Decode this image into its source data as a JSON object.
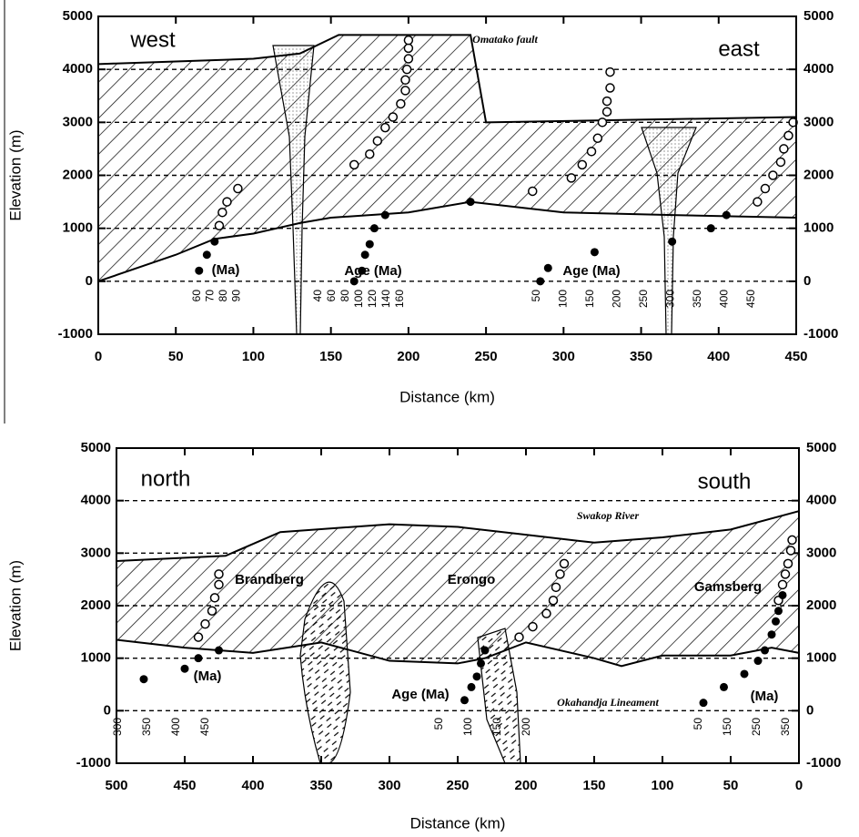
{
  "chart_data": [
    {
      "type": "section",
      "x_label": "Distance (km)",
      "y_label": "Elevation (m)",
      "xlim": [
        0,
        450
      ],
      "ylim": [
        -1000,
        5000
      ],
      "xticks": [
        0,
        50,
        100,
        150,
        200,
        250,
        300,
        350,
        400,
        450
      ],
      "yticks": [
        -1000,
        0,
        1000,
        2000,
        3000,
        4000,
        5000
      ],
      "grid": true,
      "series": [
        {
          "marker": "surface-top",
          "color": "#000000",
          "x": [
            0,
            50,
            100,
            130,
            155,
            240,
            250,
            350,
            450
          ],
          "values": [
            4100,
            4150,
            4200,
            4300,
            4650,
            4650,
            3000,
            3050,
            3100
          ]
        },
        {
          "marker": "surface-base",
          "color": "#000000",
          "x": [
            0,
            50,
            75,
            100,
            130,
            150,
            200,
            240,
            300,
            370,
            450
          ],
          "values": [
            0,
            500,
            800,
            900,
            1100,
            1200,
            1300,
            1500,
            1300,
            1250,
            1200
          ]
        },
        {
          "marker": "open",
          "color": "#000000",
          "x": [
            78,
            80,
            83,
            90,
            165,
            175,
            180,
            185,
            190,
            195,
            198,
            198,
            199,
            200,
            200,
            200,
            280,
            305,
            312,
            318,
            322,
            325,
            328,
            328,
            330,
            330,
            425,
            430,
            435,
            440,
            442,
            445,
            448
          ],
          "values": [
            1050,
            1300,
            1500,
            1750,
            2200,
            2400,
            2650,
            2900,
            3100,
            3350,
            3600,
            3800,
            4000,
            4200,
            4400,
            4550,
            1700,
            1950,
            2200,
            2450,
            2700,
            3000,
            3200,
            3400,
            3650,
            3950,
            1500,
            1750,
            2000,
            2250,
            2500,
            2750,
            3000
          ]
        },
        {
          "marker": "filled",
          "color": "#000000",
          "x": [
            65,
            70,
            75,
            165,
            170,
            172,
            175,
            178,
            185,
            240,
            285,
            290,
            320,
            370,
            395,
            405
          ],
          "values": [
            200,
            500,
            750,
            0,
            200,
            500,
            700,
            1000,
            1250,
            1500,
            0,
            250,
            550,
            750,
            1000,
            1250
          ]
        }
      ],
      "annotations": [
        "west",
        "east",
        "Omatako fault",
        "(Ma)",
        "Age (Ma)",
        "Age (Ma)"
      ],
      "age_axes": [
        [
          60,
          70,
          80,
          90
        ],
        [
          40,
          60,
          80,
          100,
          120,
          140,
          160
        ],
        [
          50,
          100,
          150,
          200,
          250,
          300,
          350,
          400,
          450
        ]
      ]
    },
    {
      "type": "section",
      "x_label": "Distance (km)",
      "y_label": "Elevation (m)",
      "xlim": [
        500,
        0
      ],
      "ylim": [
        -1000,
        5000
      ],
      "xticks": [
        500,
        450,
        400,
        350,
        300,
        250,
        200,
        150,
        100,
        50,
        0
      ],
      "yticks": [
        -1000,
        0,
        1000,
        2000,
        3000,
        4000,
        5000
      ],
      "grid": true,
      "series": [
        {
          "marker": "surface-top",
          "color": "#000000",
          "x": [
            500,
            420,
            380,
            300,
            250,
            200,
            150,
            100,
            50,
            0
          ],
          "values": [
            2850,
            2950,
            3400,
            3550,
            3500,
            3350,
            3200,
            3300,
            3450,
            3800
          ]
        },
        {
          "marker": "surface-base",
          "color": "#000000",
          "x": [
            500,
            450,
            400,
            350,
            300,
            250,
            230,
            200,
            150,
            130,
            100,
            50,
            20,
            0
          ],
          "values": [
            1350,
            1200,
            1100,
            1300,
            950,
            900,
            1000,
            1300,
            1000,
            850,
            1050,
            1050,
            1200,
            1100
          ]
        },
        {
          "marker": "open",
          "color": "#000000",
          "x": [
            440,
            435,
            430,
            428,
            425,
            425,
            205,
            195,
            185,
            180,
            178,
            175,
            172,
            15,
            12,
            10,
            8,
            6,
            5
          ],
          "values": [
            1400,
            1650,
            1900,
            2150,
            2400,
            2600,
            1400,
            1600,
            1850,
            2100,
            2350,
            2600,
            2800,
            2100,
            2400,
            2600,
            2800,
            3050,
            3250
          ]
        },
        {
          "marker": "filled",
          "color": "#000000",
          "x": [
            480,
            450,
            440,
            425,
            245,
            240,
            236,
            233,
            230,
            70,
            55,
            40,
            30,
            25,
            20,
            17,
            15,
            12
          ],
          "values": [
            600,
            800,
            1000,
            1150,
            200,
            450,
            650,
            900,
            1150,
            150,
            450,
            700,
            950,
            1150,
            1450,
            1700,
            1900,
            2200
          ]
        }
      ],
      "annotations": [
        "north",
        "south",
        "Brandberg",
        "Erongo",
        "Gamsberg",
        "Swakop River",
        "Okahandja Lineament",
        "(Ma)",
        "Age (Ma)",
        "(Ma)"
      ],
      "age_axes": [
        [
          300,
          350,
          400,
          450
        ],
        [
          50,
          100,
          150,
          200
        ],
        [
          50,
          150,
          250,
          350
        ]
      ]
    }
  ]
}
